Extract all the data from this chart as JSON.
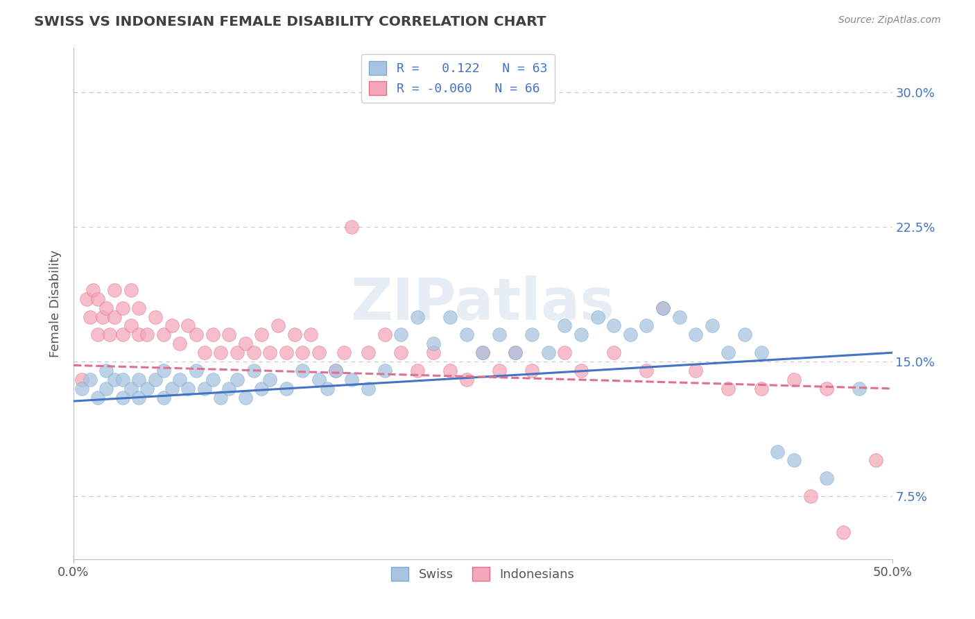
{
  "title": "SWISS VS INDONESIAN FEMALE DISABILITY CORRELATION CHART",
  "source": "Source: ZipAtlas.com",
  "ylabel": "Female Disability",
  "xlim": [
    0.0,
    0.5
  ],
  "ylim": [
    0.04,
    0.325
  ],
  "xtick_labels": [
    "0.0%",
    "50.0%"
  ],
  "ytick_labels": [
    "7.5%",
    "15.0%",
    "22.5%",
    "30.0%"
  ],
  "ytick_values": [
    0.075,
    0.15,
    0.225,
    0.3
  ],
  "swiss_color": "#a8c4e0",
  "swiss_edge": "#7aaad0",
  "indonesian_color": "#f4a7b9",
  "indonesian_edge": "#e07090",
  "line_swiss_color": "#4472c4",
  "line_indonesian_color": "#e07090",
  "background_color": "#ffffff",
  "grid_color": "#c8c8c8",
  "title_color": "#404040",
  "watermark": "ZIPatlas",
  "swiss_points": [
    [
      0.005,
      0.135
    ],
    [
      0.01,
      0.14
    ],
    [
      0.015,
      0.13
    ],
    [
      0.02,
      0.135
    ],
    [
      0.02,
      0.145
    ],
    [
      0.025,
      0.14
    ],
    [
      0.03,
      0.13
    ],
    [
      0.03,
      0.14
    ],
    [
      0.035,
      0.135
    ],
    [
      0.04,
      0.13
    ],
    [
      0.04,
      0.14
    ],
    [
      0.045,
      0.135
    ],
    [
      0.05,
      0.14
    ],
    [
      0.055,
      0.13
    ],
    [
      0.055,
      0.145
    ],
    [
      0.06,
      0.135
    ],
    [
      0.065,
      0.14
    ],
    [
      0.07,
      0.135
    ],
    [
      0.075,
      0.145
    ],
    [
      0.08,
      0.135
    ],
    [
      0.085,
      0.14
    ],
    [
      0.09,
      0.13
    ],
    [
      0.095,
      0.135
    ],
    [
      0.1,
      0.14
    ],
    [
      0.105,
      0.13
    ],
    [
      0.11,
      0.145
    ],
    [
      0.115,
      0.135
    ],
    [
      0.12,
      0.14
    ],
    [
      0.13,
      0.135
    ],
    [
      0.14,
      0.145
    ],
    [
      0.15,
      0.14
    ],
    [
      0.155,
      0.135
    ],
    [
      0.16,
      0.145
    ],
    [
      0.17,
      0.14
    ],
    [
      0.18,
      0.135
    ],
    [
      0.19,
      0.145
    ],
    [
      0.2,
      0.165
    ],
    [
      0.21,
      0.175
    ],
    [
      0.22,
      0.16
    ],
    [
      0.23,
      0.175
    ],
    [
      0.24,
      0.165
    ],
    [
      0.25,
      0.155
    ],
    [
      0.26,
      0.165
    ],
    [
      0.27,
      0.155
    ],
    [
      0.28,
      0.165
    ],
    [
      0.29,
      0.155
    ],
    [
      0.3,
      0.17
    ],
    [
      0.31,
      0.165
    ],
    [
      0.32,
      0.175
    ],
    [
      0.33,
      0.17
    ],
    [
      0.34,
      0.165
    ],
    [
      0.35,
      0.17
    ],
    [
      0.36,
      0.18
    ],
    [
      0.37,
      0.175
    ],
    [
      0.38,
      0.165
    ],
    [
      0.39,
      0.17
    ],
    [
      0.4,
      0.155
    ],
    [
      0.41,
      0.165
    ],
    [
      0.42,
      0.155
    ],
    [
      0.43,
      0.1
    ],
    [
      0.44,
      0.095
    ],
    [
      0.46,
      0.085
    ],
    [
      0.48,
      0.135
    ]
  ],
  "indonesian_points": [
    [
      0.005,
      0.14
    ],
    [
      0.008,
      0.185
    ],
    [
      0.01,
      0.175
    ],
    [
      0.012,
      0.19
    ],
    [
      0.015,
      0.165
    ],
    [
      0.015,
      0.185
    ],
    [
      0.018,
      0.175
    ],
    [
      0.02,
      0.18
    ],
    [
      0.022,
      0.165
    ],
    [
      0.025,
      0.175
    ],
    [
      0.025,
      0.19
    ],
    [
      0.03,
      0.165
    ],
    [
      0.03,
      0.18
    ],
    [
      0.035,
      0.17
    ],
    [
      0.035,
      0.19
    ],
    [
      0.04,
      0.165
    ],
    [
      0.04,
      0.18
    ],
    [
      0.045,
      0.165
    ],
    [
      0.05,
      0.175
    ],
    [
      0.055,
      0.165
    ],
    [
      0.06,
      0.17
    ],
    [
      0.065,
      0.16
    ],
    [
      0.07,
      0.17
    ],
    [
      0.075,
      0.165
    ],
    [
      0.08,
      0.155
    ],
    [
      0.085,
      0.165
    ],
    [
      0.09,
      0.155
    ],
    [
      0.095,
      0.165
    ],
    [
      0.1,
      0.155
    ],
    [
      0.105,
      0.16
    ],
    [
      0.11,
      0.155
    ],
    [
      0.115,
      0.165
    ],
    [
      0.12,
      0.155
    ],
    [
      0.125,
      0.17
    ],
    [
      0.13,
      0.155
    ],
    [
      0.135,
      0.165
    ],
    [
      0.14,
      0.155
    ],
    [
      0.145,
      0.165
    ],
    [
      0.15,
      0.155
    ],
    [
      0.16,
      0.145
    ],
    [
      0.165,
      0.155
    ],
    [
      0.17,
      0.225
    ],
    [
      0.18,
      0.155
    ],
    [
      0.19,
      0.165
    ],
    [
      0.2,
      0.155
    ],
    [
      0.21,
      0.145
    ],
    [
      0.22,
      0.155
    ],
    [
      0.23,
      0.145
    ],
    [
      0.24,
      0.14
    ],
    [
      0.25,
      0.155
    ],
    [
      0.26,
      0.145
    ],
    [
      0.27,
      0.155
    ],
    [
      0.28,
      0.145
    ],
    [
      0.3,
      0.155
    ],
    [
      0.31,
      0.145
    ],
    [
      0.33,
      0.155
    ],
    [
      0.35,
      0.145
    ],
    [
      0.36,
      0.18
    ],
    [
      0.38,
      0.145
    ],
    [
      0.4,
      0.135
    ],
    [
      0.42,
      0.135
    ],
    [
      0.44,
      0.14
    ],
    [
      0.45,
      0.075
    ],
    [
      0.46,
      0.135
    ],
    [
      0.47,
      0.055
    ],
    [
      0.49,
      0.095
    ]
  ],
  "swiss_line": [
    0.0,
    0.5,
    0.128,
    0.155
  ],
  "indo_line": [
    0.0,
    0.5,
    0.148,
    0.135
  ]
}
